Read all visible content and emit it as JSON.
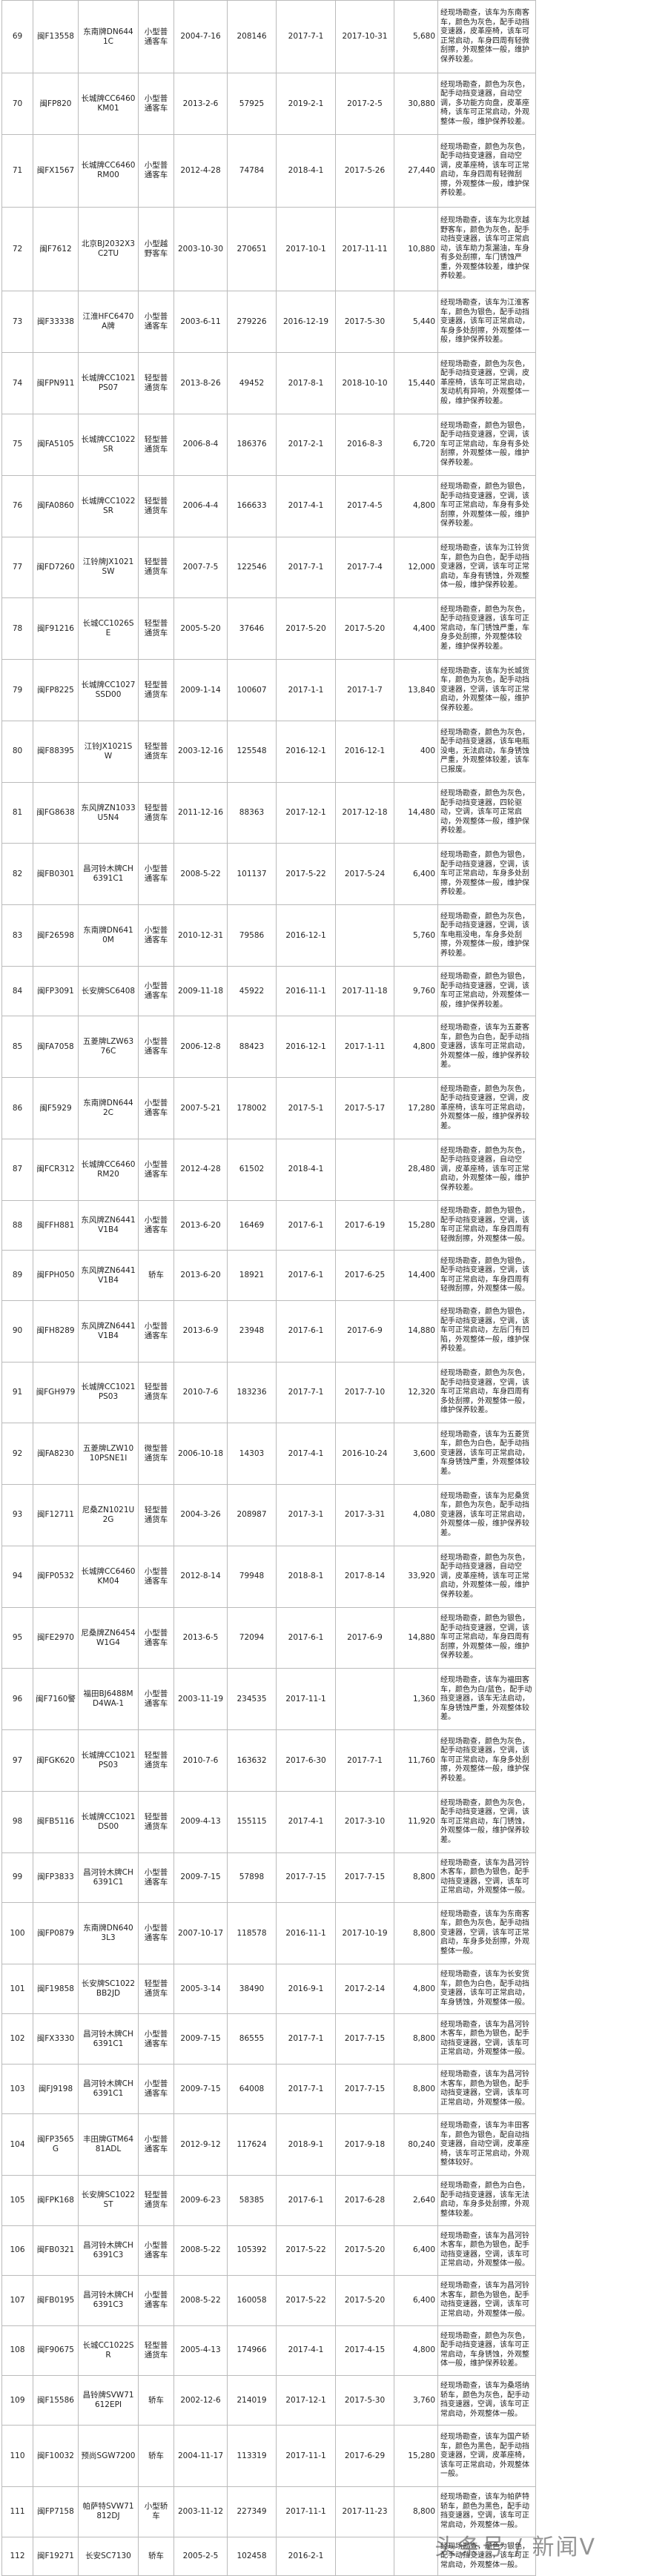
{
  "table": {
    "rows": [
      [
        "69",
        "闽F13558",
        "东南牌DN6441C",
        "小型普通客车",
        "2004-7-16",
        "208146",
        "2017-7-1",
        "2017-10-31",
        "5,680",
        "经现场勘查，该车为东南客车，颜色为灰色，配手动挡变速器，皮革座椅，该车可正常启动，车身四周有轻微刮擦，外观整体一般，维护保养较差。"
      ],
      [
        "70",
        "闽FP820",
        "长城牌CC6460KM01",
        "小型普通客车",
        "2013-2-6",
        "57925",
        "2019-2-1",
        "2017-2-5",
        "30,880",
        "经现场勘查，颜色为灰色，配手动挡变速器，自动空调，多功能方向盘，皮革座椅，该车可正常启动，外观整体一般，维护保养较差。"
      ],
      [
        "71",
        "闽FX1567",
        "长城牌CC6460RM00",
        "小型普通客车",
        "2012-4-28",
        "74784",
        "2018-4-1",
        "2017-5-26",
        "27,440",
        "经现场勘查，颜色为灰色，配手动挡变速器，自动空调，皮革座椅，该车可正常启动，车身四周有轻微刮擦，外观整体一般，维护保养较差。"
      ],
      [
        "72",
        "闽F7612",
        "北京BJ2032X3C2TU",
        "小型越野客车",
        "2003-10-30",
        "270651",
        "2017-10-1",
        "2017-11-11",
        "10,880",
        "经现场勘查，该车为北京越野客车，颜色为灰色，配手动挡变速器，该车可正常启动，该车助力泵漏油，车身有多处刮擦，车门锈蚀严重，外观整体较差，维护保养较差。"
      ],
      [
        "73",
        "闽F33338",
        "江淮HFC6470A牌",
        "小型普通客车",
        "2003-6-11",
        "279226",
        "2016-12-19",
        "2017-5-30",
        "5,440",
        "经现场勘查，该车为江淮客车，颜色为银色，配手动挡变速器，该车可正常启动，车身多处刮擦，外观整体一般，维护保养较差。"
      ],
      [
        "74",
        "闽FPN911",
        "长城牌CC1021PS07",
        "轻型普通货车",
        "2013-8-26",
        "49452",
        "2017-8-1",
        "2018-10-10",
        "15,440",
        "经现场勘查，颜色为灰色，配手动挡变速器，空调，皮革座椅，该车可正常启动，发动机有异响，外观整体一般，维护保养较差。"
      ],
      [
        "75",
        "闽FA5105",
        "长城牌CC1022SR",
        "轻型普通货车",
        "2006-8-4",
        "186376",
        "2017-2-1",
        "2016-8-3",
        "6,720",
        "经现场勘查，颜色为银色，配手动挡变速器，空调，该车可正常启动，车身有多处刮擦，外观整体一般，维护保养较差。"
      ],
      [
        "76",
        "闽FA0860",
        "长城牌CC1022SR",
        "轻型普通货车",
        "2006-4-4",
        "166633",
        "2017-4-1",
        "2017-4-5",
        "4,800",
        "经现场勘查，颜色为银色，配手动挡变速器，空调，该车可正常启动，车身有多处刮擦，外观整体一般，维护保养较差。"
      ],
      [
        "77",
        "闽FD7260",
        "江铃牌JX1021SW",
        "轻型普通货车",
        "2007-7-5",
        "122546",
        "2017-7-1",
        "2017-7-4",
        "12,000",
        "经现场勘查，该车为江铃货车，颜色为白色，配手动挡变速器，空调，该车可正常启动，车身有锈蚀，外观整体一般，维护保养较差。"
      ],
      [
        "78",
        "闽F91216",
        "长城CC1026SE",
        "轻型普通货车",
        "2005-5-20",
        "37646",
        "2017-5-20",
        "2017-5-20",
        "4,400",
        "经现场勘查，颜色为灰色，配手动挡变速器，该车可正常启动，车门锈蚀严重，车身多处刮擦，外观整体较差，维护保养较差。"
      ],
      [
        "79",
        "闽FP8225",
        "长城牌CC1027SSD00",
        "轻型普通货车",
        "2009-1-14",
        "100607",
        "2017-1-1",
        "2017-1-7",
        "13,840",
        "经现场勘查，该车为长城货车，颜色为灰色，配手动挡变速器，空调，该车可正常启动，外观整体一般，维护保养较差。"
      ],
      [
        "80",
        "闽F88395",
        "江铃JX1021SW",
        "轻型普通货车",
        "2003-12-16",
        "125548",
        "2016-12-1",
        "2016-12-1",
        "400",
        "经现场勘查，颜色为灰色，配手动挡变速器，该车电瓶没电，无法启动，车身锈蚀严重，外观整体较差，该车已报废。"
      ],
      [
        "81",
        "闽FG8638",
        "东风牌ZN1033U5N4",
        "轻型普通货车",
        "2011-12-16",
        "88363",
        "2017-12-1",
        "2017-12-18",
        "14,480",
        "经现场勘查，颜色为灰色，配手动挡变速器，四轮驱动，空调，该车可正常启动，外观整体一般，维护保养较差。"
      ],
      [
        "82",
        "闽FB0301",
        "昌河铃木牌CH6391C1",
        "小型普通客车",
        "2008-5-22",
        "101137",
        "2017-5-22",
        "2017-5-24",
        "6,400",
        "经现场勘查，颜色为银色，配手动挡变速器，空调，该车可正常启动，车身多处刮擦，外观整体一般，维护保养较差。"
      ],
      [
        "83",
        "闽F26598",
        "东南牌DN6410M",
        "小型普通客车",
        "2010-12-31",
        "79586",
        "2016-12-1",
        null,
        "5,760",
        "经现场勘查，颜色为灰色，配手动挡变速器，空调，该车电瓶没电，车身多处刮擦，外观整体一般，维护保养较差。"
      ],
      [
        "84",
        "闽FP3091",
        "长安牌SC6408",
        "小型普通客车",
        "2009-11-18",
        "45922",
        "2016-11-1",
        "2017-11-18",
        "9,760",
        "经现场勘查，颜色为银色，配手动挡变速器，空调，该车可正常启动，外观整体一般，维护保养较差。"
      ],
      [
        "85",
        "闽FA7058",
        "五菱牌LZW6376C",
        "小型普通客车",
        "2006-12-8",
        "88423",
        "2016-12-1",
        "2017-1-11",
        "4,800",
        "经现场勘查，该车为五菱客车，颜色为白色，配手动挡变速器，该车可正常启动，外观整体一般，维护保养较差。"
      ],
      [
        "86",
        "闽F5929",
        "东南牌DN6442C",
        "小型普通客车",
        "2007-5-21",
        "178002",
        "2017-5-1",
        "2017-5-17",
        "17,280",
        "经现场勘查，颜色为灰色，配手动挡变速器，空调，皮革座椅，该车可正常启动，外观整体一般，维护保养较差。"
      ],
      [
        "87",
        "闽FCR312",
        "长城牌CC6460RM20",
        "小型普通客车",
        "2012-4-28",
        "61502",
        "2018-4-1",
        null,
        "28,480",
        "经现场勘查，颜色为灰色，配手动挡变速器，自动空调，皮革座椅，该车可正常启动，外观整体一般，维护保养较差。"
      ],
      [
        "88",
        "闽FFH881",
        "东风牌ZN6441V1B4",
        "小型普通客车",
        "2013-6-20",
        "16469",
        "2017-6-1",
        "2017-6-19",
        "15,280",
        "经现场勘查，颜色为银色，配手动挡变速器，空调，该车可正常启动，车身四周有轻微刮擦，外观整体一般。"
      ],
      [
        "89",
        "闽FPH050",
        "东风牌ZN6441V1B4",
        "轿车",
        "2013-6-20",
        "18921",
        "2017-6-1",
        "2017-6-25",
        "14,400",
        "经现场勘查，颜色为银色，配手动挡变速器，空调，该车可正常启动，车身四周有轻微刮擦，外观整体一般。"
      ],
      [
        "90",
        "闽FH8289",
        "东风牌ZN6441V1B4",
        "小型普通客车",
        "2013-6-9",
        "23948",
        "2017-6-1",
        "2017-6-9",
        "14,880",
        "经现场勘查，颜色为银色，配手动挡变速器，空调，该车可正常启动，左后门有凹陷，外观整体一般，维护保养较差。"
      ],
      [
        "91",
        "闽FGH979",
        "长城牌CC1021PS03",
        "轻型普通货车",
        "2010-7-6",
        "183236",
        "2017-7-1",
        "2017-7-10",
        "12,320",
        "经现场勘查，颜色为灰色，配手动挡变速器，空调，该车可正常启动，车身四周有多处刮擦，外观整体一般，维护保养较差。"
      ],
      [
        "92",
        "闽FA8230",
        "五菱牌LZW1010PSNE1I",
        "微型普通货车",
        "2006-10-18",
        "14303",
        "2017-4-1",
        "2016-10-24",
        "3,600",
        "经现场勘查，该车为五菱货车，颜色为白色，配手动挡变速器，该车可正常启动，车身锈蚀严重，外观整体较差。"
      ],
      [
        "93",
        "闽F12711",
        "尼桑ZN1021U2G",
        "轻型普通货车",
        "2004-3-26",
        "208987",
        "2017-3-1",
        "2017-3-31",
        "4,080",
        "经现场勘查，该车为尼桑货车，颜色为灰色，配手动挡变速器，该车可正常启动，外观整体一般，维护保养较差。"
      ],
      [
        "94",
        "闽FP0532",
        "长城牌CC6460KM04",
        "小型普通客车",
        "2012-8-14",
        "79948",
        "2018-8-1",
        "2017-8-14",
        "33,920",
        "经现场勘查，颜色为灰色，配手动挡变速器，自动空调，皮革座椅，该车可正常启动，外观整体一般，维护保养较差。"
      ],
      [
        "95",
        "闽FE2970",
        "尼桑牌ZN6454W1G4",
        "小型普通客车",
        "2013-6-5",
        "72094",
        "2017-6-1",
        "2017-6-9",
        "14,880",
        "经现场勘查，颜色为银色，配手动挡变速器，空调，该车可正常启动，车身四周有刮擦，外观整体一般，维护保养较差。"
      ],
      [
        "96",
        "闽F7160警",
        "福田BJ6488MD4WA-1",
        "小型普通客车",
        "2003-11-19",
        "234535",
        "2017-11-1",
        null,
        "1,360",
        "经现场勘查，该车为福田客车，颜色为白/蓝色，配手动挡变速器，该车无法启动，车身锈蚀严重，外观整体较差。"
      ],
      [
        "97",
        "闽FGK620",
        "长城牌CC1021PS03",
        "轻型普通货车",
        "2010-7-6",
        "163632",
        "2017-6-30",
        "2017-7-1",
        "11,760",
        "经现场勘查，颜色为灰色，配手动挡变速器，空调，该车可正常启动，车身多处刮擦，外观整体一般，维护保养较差。"
      ],
      [
        "98",
        "闽FB5116",
        "长城牌CC1021DS00",
        "轻型普通货车",
        "2009-4-13",
        "155115",
        "2017-4-1",
        "2017-3-10",
        "11,920",
        "经现场勘查，颜色为灰色，配手动挡变速器，空调，该车可正常启动，车门锈蚀，外观整体一般，维护保养较差。"
      ],
      [
        "99",
        "闽FP3833",
        "昌河铃木牌CH6391C1",
        "小型普通客车",
        "2009-7-15",
        "57898",
        "2017-7-15",
        "2017-7-15",
        "8,800",
        "经现场勘查，该车为昌河铃木客车，颜色为银色，配手动挡变速器，空调，该车可正常启动，外观整体一般。"
      ],
      [
        "100",
        "闽FP0879",
        "东南牌DN6403L3",
        "小型普通客车",
        "2007-10-17",
        "118578",
        "2016-11-1",
        "2017-10-19",
        "8,800",
        "经现场勘查，该车为东南客车，颜色为灰色，配手动挡变速器，空调，该车可正常启动，车身多处刮擦，外观整体一般。"
      ],
      [
        "101",
        "闽F19858",
        "长安牌SC1022BB2JD",
        "轻型普通货车",
        "2005-3-14",
        "38490",
        "2016-9-1",
        "2017-2-14",
        "4,800",
        "经现场勘查，该车为长安货车，颜色为白色，配手动挡变速器，该车可正常启动，车身锈蚀，外观整体一般。"
      ],
      [
        "102",
        "闽FX3330",
        "昌河铃木牌CH6391C1",
        "小型普通客车",
        "2009-7-15",
        "86555",
        "2017-7-1",
        "2017-7-15",
        "8,800",
        "经现场勘查，该车为昌河铃木客车，颜色为银色，配手动挡变速器，空调，该车可正常启动，外观整体一般。"
      ],
      [
        "103",
        "闽FJ9198",
        "昌河铃木牌CH6391C1",
        "小型普通客车",
        "2009-7-15",
        "64008",
        "2017-7-1",
        "2017-7-15",
        "8,800",
        "经现场勘查，该车为昌河铃木客车，颜色为银色，配手动挡变速器，空调，该车可正常启动，外观整体一般。"
      ],
      [
        "104",
        "闽FP3565G",
        "丰田牌GTM6481ADL",
        "小型普通客车",
        "2012-9-12",
        "117624",
        "2018-9-1",
        "2017-9-18",
        "80,240",
        "经现场勘查，该车为丰田客车，颜色为银色，配自动挡变速器，自动空调，皮革座椅，该车可正常启动，外观整体较好。"
      ],
      [
        "105",
        "闽FPK168",
        "长安牌SC1022ST",
        "轻型普通货车",
        "2009-6-23",
        "58385",
        "2017-6-1",
        "2017-6-28",
        "2,640",
        "经现场勘查，颜色为白色，配手动挡变速器，该车无法启动，车身多处刮擦，外观整体较差。"
      ],
      [
        "106",
        "闽FB0321",
        "昌河铃木牌CH6391C3",
        "小型普通客车",
        "2008-5-22",
        "105392",
        "2017-5-22",
        "2017-5-20",
        "6,400",
        "经现场勘查，该车为昌河铃木客车，颜色为银色，配手动挡变速器，空调，该车可正常启动，外观整体一般。"
      ],
      [
        "107",
        "闽FB0195",
        "昌河铃木牌CH6391C3",
        "小型普通客车",
        "2008-5-22",
        "160058",
        "2017-5-22",
        "2017-5-20",
        "6,400",
        "经现场勘查，该车为昌河铃木客车，颜色为银色，配手动挡变速器，空调，该车可正常启动，外观整体一般。"
      ],
      [
        "108",
        "闽F90675",
        "长城CC1022SR",
        "轻型普通货车",
        "2005-4-13",
        "174966",
        "2017-4-1",
        "2017-4-15",
        "4,800",
        "经现场勘查，颜色为灰色，配手动挡变速器，该车可正常启动，车身锈蚀，外观整体一般，维护保养较差。"
      ],
      [
        "109",
        "闽F15586",
        "昌铃牌SVW71612EPI",
        "轿车",
        "2002-12-6",
        "214019",
        "2017-12-1",
        "2017-5-30",
        "3,760",
        "经现场勘查，该车为桑塔纳轿车，颜色为灰色，配手动挡变速器，空调，该车可正常启动，外观整体一般。"
      ],
      [
        "110",
        "闽F10032",
        "预尚SGW7200",
        "轿车",
        "2004-11-17",
        "113319",
        "2017-11-1",
        "2017-6-29",
        "15,280",
        "经现场勘查，该车为国产轿车，颜色为黑色，配手动挡变速器，空调，皮革座椅，该车可正常启动，外观整体一般。"
      ],
      [
        "111",
        "闽FP7158",
        "帕萨特SVW71812DJ",
        "小型轿车",
        "2003-11-12",
        "227349",
        "2017-11-1",
        "2017-11-23",
        "8,800",
        "经现场勘查，该车为帕萨特轿车，颜色为黑色，配手动挡变速器，空调，该车可正常启动，外观整体一般。"
      ],
      [
        "112",
        "闽F19271",
        "长安SC7130",
        "轿车",
        "2005-2-5",
        "102458",
        "2016-2-1",
        null,
        null,
        "经现场勘查，颜色为银色，配手动挡变速器，该车可正常启动，外观整体一般。"
      ]
    ]
  },
  "watermark": "头条号 / 新闻V"
}
